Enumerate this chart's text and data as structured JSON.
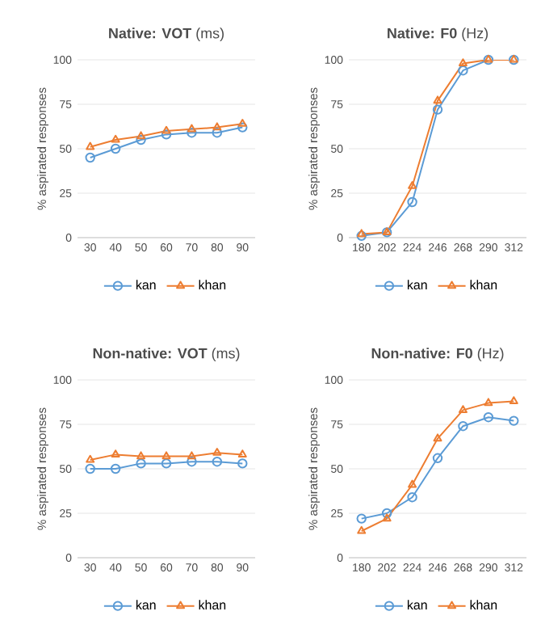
{
  "chart_data": [
    {
      "type": "line",
      "title": "**Native: VOT** (ms)",
      "ylabel": "% aspirated responses",
      "categories": [
        "30",
        "40",
        "50",
        "60",
        "70",
        "80",
        "90"
      ],
      "ylim": [
        0,
        100
      ],
      "yticks": [
        0,
        25,
        50,
        75,
        100
      ],
      "grid": "y",
      "legend": "bottom",
      "series": [
        {
          "name": "kan",
          "color": "#5b9bd5",
          "marker": "circle",
          "values": [
            45,
            50,
            55,
            58,
            59,
            59,
            62
          ]
        },
        {
          "name": "khan",
          "color": "#ed7d31",
          "marker": "triangle",
          "values": [
            51,
            55,
            57,
            60,
            61,
            62,
            64
          ]
        }
      ]
    },
    {
      "type": "line",
      "title": "**Native: F0** (Hz)",
      "ylabel": "% aspirated responses",
      "categories": [
        "180",
        "202",
        "224",
        "246",
        "268",
        "290",
        "312"
      ],
      "ylim": [
        0,
        100
      ],
      "yticks": [
        0,
        25,
        50,
        75,
        100
      ],
      "grid": "y",
      "legend": "bottom",
      "series": [
        {
          "name": "kan",
          "color": "#5b9bd5",
          "marker": "circle",
          "values": [
            1,
            3,
            20,
            72,
            94,
            100,
            100
          ]
        },
        {
          "name": "khan",
          "color": "#ed7d31",
          "marker": "triangle",
          "values": [
            2,
            3,
            29,
            77,
            98,
            100,
            100
          ]
        }
      ]
    },
    {
      "type": "line",
      "title": "**Non-native: VOT** (ms)",
      "ylabel": "% aspirated responses",
      "categories": [
        "30",
        "40",
        "50",
        "60",
        "70",
        "80",
        "90"
      ],
      "ylim": [
        0,
        100
      ],
      "yticks": [
        0,
        25,
        50,
        75,
        100
      ],
      "grid": "y",
      "legend": "bottom",
      "series": [
        {
          "name": "kan",
          "color": "#5b9bd5",
          "marker": "circle",
          "values": [
            50,
            50,
            53,
            53,
            54,
            54,
            53
          ]
        },
        {
          "name": "khan",
          "color": "#ed7d31",
          "marker": "triangle",
          "values": [
            55,
            58,
            57,
            57,
            57,
            59,
            58
          ]
        }
      ]
    },
    {
      "type": "line",
      "title": "**Non-native: F0** (Hz)",
      "ylabel": "% aspirated responses",
      "categories": [
        "180",
        "202",
        "224",
        "246",
        "268",
        "290",
        "312"
      ],
      "ylim": [
        0,
        100
      ],
      "yticks": [
        0,
        25,
        50,
        75,
        100
      ],
      "grid": "y",
      "legend": "bottom",
      "series": [
        {
          "name": "kan",
          "color": "#5b9bd5",
          "marker": "circle",
          "values": [
            22,
            25,
            34,
            56,
            74,
            79,
            77
          ]
        },
        {
          "name": "khan",
          "color": "#ed7d31",
          "marker": "triangle",
          "values": [
            15,
            22,
            41,
            67,
            83,
            87,
            88
          ]
        }
      ]
    }
  ]
}
